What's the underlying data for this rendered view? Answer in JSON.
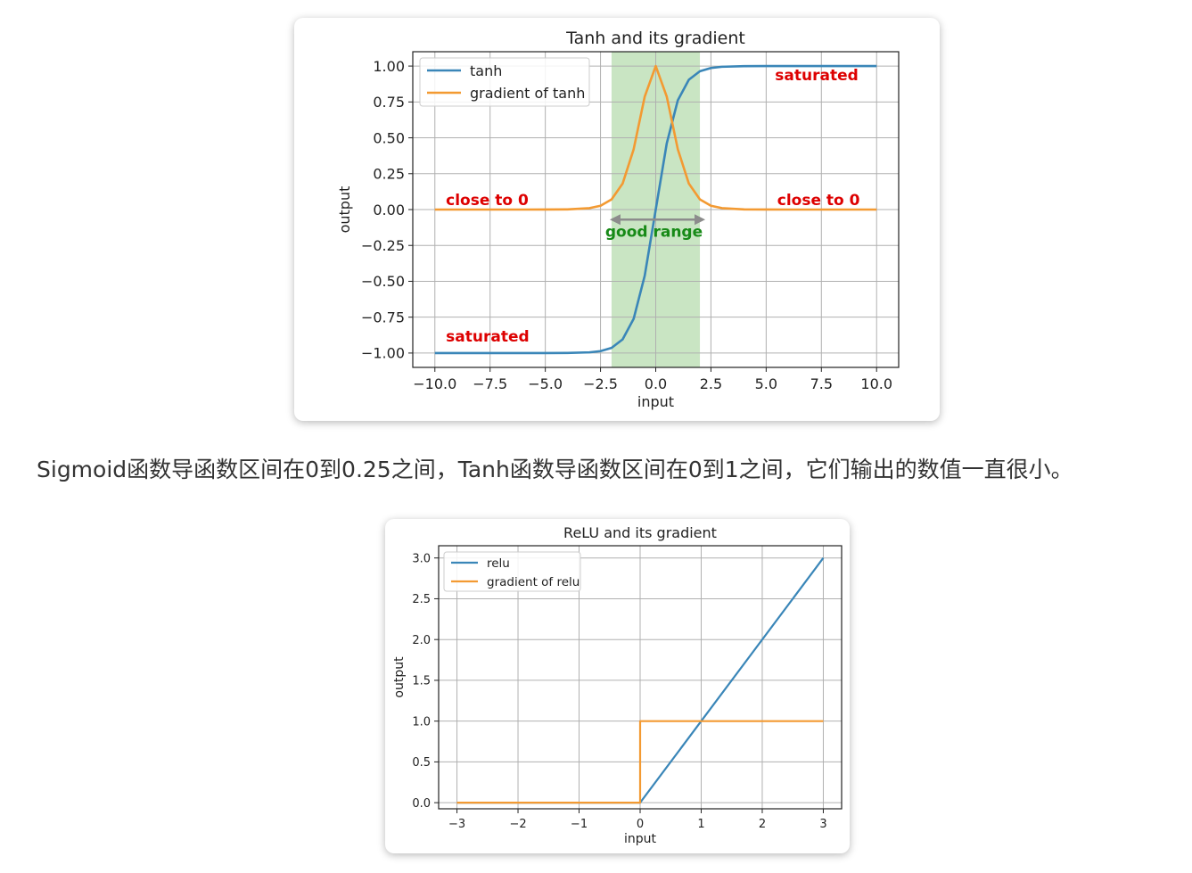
{
  "caption": "Sigmoid函数导函数区间在0到0.25之间，Tanh函数导函数区间在0到1之间，它们输出的数值一直很小。",
  "colors": {
    "series1": "#3a86b8",
    "series2": "#f39a32",
    "annotation_red": "#dd0000",
    "annotation_green": "#178a17",
    "good_range_fill": "#9ccf92",
    "arrow": "#8c8c8c"
  },
  "chart_data": [
    {
      "type": "line",
      "title": "Tanh and its gradient",
      "xlabel": "input",
      "ylabel": "output",
      "xlim": [
        -11,
        11
      ],
      "ylim": [
        -1.1,
        1.1
      ],
      "xticks": [
        -10,
        -7.5,
        -5,
        -2.5,
        0,
        2.5,
        5,
        7.5,
        10
      ],
      "xtick_labels": [
        "−10.0",
        "−7.5",
        "−5.0",
        "−2.5",
        "0.0",
        "2.5",
        "5.0",
        "7.5",
        "10.0"
      ],
      "yticks": [
        1,
        0.75,
        0.5,
        0.25,
        0,
        -0.25,
        -0.5,
        -0.75,
        -1
      ],
      "ytick_labels": [
        "1.00",
        "0.75",
        "0.50",
        "0.25",
        "0.00",
        "−0.25",
        "−0.50",
        "−0.75",
        "−1.00"
      ],
      "grid": true,
      "legend": "top-left",
      "x": [
        -10,
        -8,
        -6,
        -5,
        -4,
        -3,
        -2.5,
        -2,
        -1.5,
        -1,
        -0.5,
        0,
        0.5,
        1,
        1.5,
        2,
        2.5,
        3,
        4,
        5,
        6,
        8,
        10
      ],
      "series": [
        {
          "name": "tanh",
          "values": [
            -1,
            -1,
            -1,
            -0.9999,
            -0.9993,
            -0.9951,
            -0.9866,
            -0.964,
            -0.9051,
            -0.7616,
            -0.4621,
            0,
            0.4621,
            0.7616,
            0.9051,
            0.964,
            0.9866,
            0.9951,
            0.9993,
            0.9999,
            1,
            1,
            1
          ]
        },
        {
          "name": "gradient of tanh",
          "values": [
            0,
            0,
            0,
            0.0002,
            0.0013,
            0.0099,
            0.0266,
            0.0707,
            0.1807,
            0.42,
            0.7864,
            1,
            0.7864,
            0.42,
            0.1807,
            0.0707,
            0.0266,
            0.0099,
            0.0013,
            0.0002,
            0,
            0,
            0
          ]
        }
      ],
      "shaded_region": {
        "x": [
          -2,
          2
        ],
        "label": "good range"
      },
      "annotations": [
        {
          "text": "saturated",
          "x": 5.4,
          "y": 0.9
        },
        {
          "text": "close to 0",
          "x": -9.5,
          "y": 0.03
        },
        {
          "text": "close to 0",
          "x": 5.5,
          "y": 0.03
        },
        {
          "text": "saturated",
          "x": -9.5,
          "y": -0.92
        }
      ]
    },
    {
      "type": "line",
      "title": "ReLU and its gradient",
      "xlabel": "input",
      "ylabel": "output",
      "xlim": [
        -3.3,
        3.3
      ],
      "ylim": [
        -0.075,
        3.15
      ],
      "xticks": [
        -3,
        -2,
        -1,
        0,
        1,
        2,
        3
      ],
      "xtick_labels": [
        "−3",
        "−2",
        "−1",
        "0",
        "1",
        "2",
        "3"
      ],
      "yticks": [
        3,
        2.5,
        2,
        1.5,
        1,
        0.5,
        0
      ],
      "ytick_labels": [
        "3.0",
        "2.5",
        "2.0",
        "1.5",
        "1.0",
        "0.5",
        "0.0"
      ],
      "grid": true,
      "legend": "top-left",
      "series": [
        {
          "name": "relu",
          "x": [
            -3,
            0,
            3
          ],
          "values": [
            0,
            0,
            3
          ]
        },
        {
          "name": "gradient of relu",
          "x": [
            -3,
            0,
            0,
            3
          ],
          "values": [
            0,
            0,
            1,
            1
          ]
        }
      ]
    }
  ]
}
